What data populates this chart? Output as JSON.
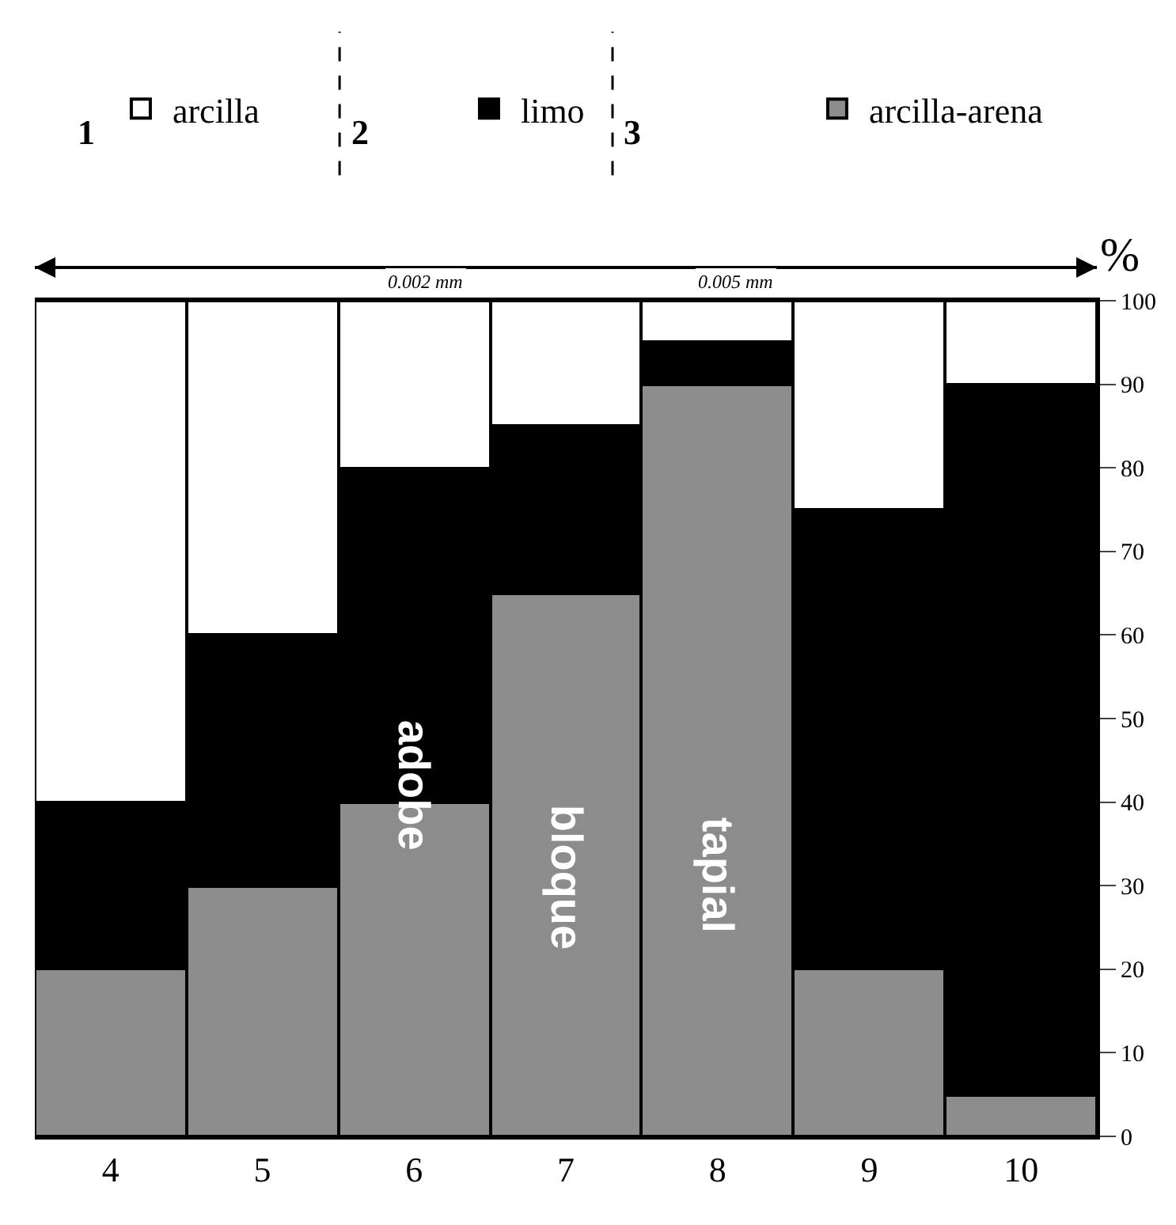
{
  "chart_data": {
    "type": "bar",
    "stacked": true,
    "categories": [
      "4",
      "5",
      "6",
      "7",
      "8",
      "9",
      "10"
    ],
    "ylabel": "%",
    "ylim": [
      0,
      100
    ],
    "yticks": [
      0,
      10,
      20,
      30,
      40,
      50,
      60,
      70,
      80,
      90,
      100
    ],
    "legend": "top",
    "series": [
      {
        "name": "arcilla-arena",
        "color": "#8c8c8c",
        "values": [
          20,
          30,
          40,
          65,
          90,
          20,
          5
        ]
      },
      {
        "name": "limo",
        "color": "#000000",
        "values": [
          20,
          30,
          40,
          20,
          5,
          55,
          85
        ]
      },
      {
        "name": "arcilla",
        "color": "#ffffff",
        "values": [
          60,
          40,
          20,
          15,
          5,
          25,
          10
        ]
      }
    ],
    "annotations": [
      "1",
      "2",
      "3",
      "0.002 mm",
      "0.005 mm",
      "adobe",
      "bloque",
      "tapial"
    ]
  }
}
